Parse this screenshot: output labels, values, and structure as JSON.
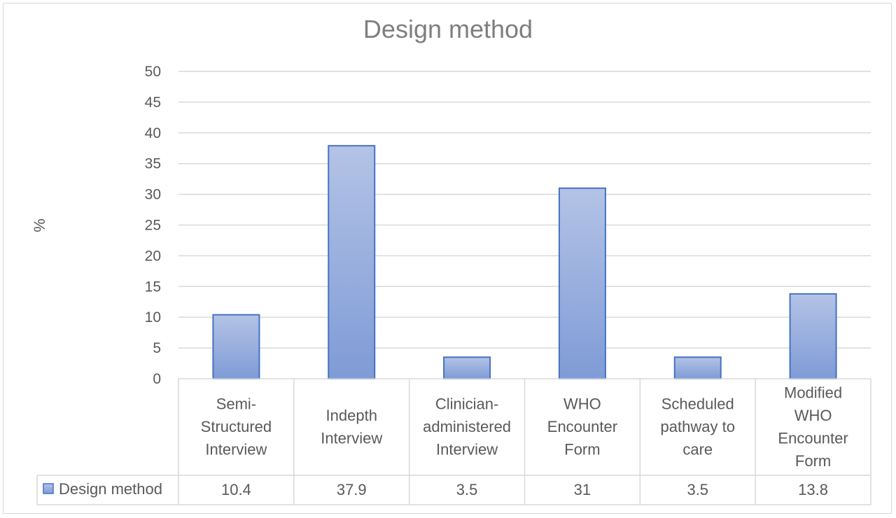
{
  "chart_data": {
    "type": "bar",
    "title": "Design method",
    "ylabel": "%",
    "xlabel": "",
    "ylim": [
      0,
      50
    ],
    "yticks": [
      0,
      5,
      10,
      15,
      20,
      25,
      30,
      35,
      40,
      45,
      50
    ],
    "grid": true,
    "categories": [
      [
        "Semi-",
        "Structured",
        "Interview"
      ],
      [
        "Indepth",
        "Interview"
      ],
      [
        "Clinician-",
        "administered",
        "Interview"
      ],
      [
        "WHO",
        "Encounter",
        "Form"
      ],
      [
        "Scheduled",
        "pathway to",
        "care"
      ],
      [
        "Modified",
        "WHO",
        "Encounter",
        "Form"
      ]
    ],
    "series": [
      {
        "name": "Design method",
        "values": [
          10.4,
          37.9,
          3.5,
          31,
          3.5,
          13.8
        ],
        "value_labels": [
          "10.4",
          "37.9",
          "3.5",
          "31",
          "3.5",
          "13.8"
        ]
      }
    ],
    "data_table": true,
    "colors": {
      "bar_top": "#b4c3e6",
      "bar_bottom": "#7f9bd6",
      "bar_border": "#4472c4"
    }
  }
}
